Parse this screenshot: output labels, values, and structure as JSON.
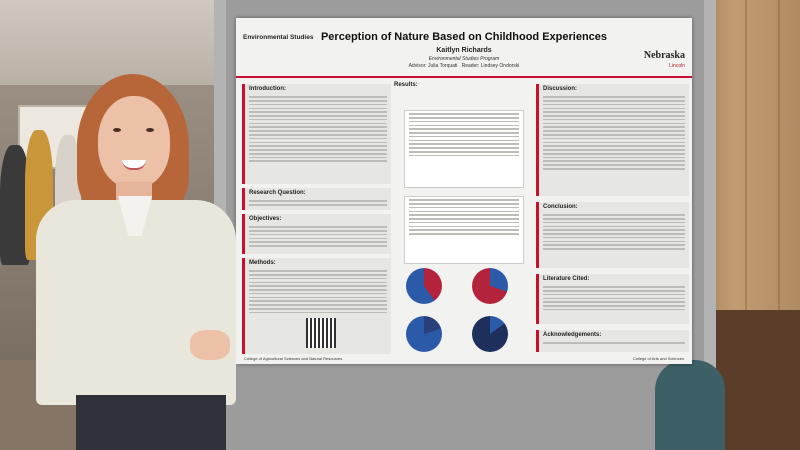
{
  "poster": {
    "logo_small": "Environmental Studies",
    "title": "Perception of Nature Based on Childhood Experiences",
    "author": "Kaitlyn Richards",
    "program": "Environmental Studies Program",
    "advisor": "Advisor: Julia Torquati",
    "reader": "Reader: Lindsey Ondorski",
    "university": "Nebraska",
    "university_sub": "Lincoln",
    "sections": {
      "introduction": "Introduction:",
      "research_question": "Research Question:",
      "objectives": "Objectives:",
      "methods": "Methods:",
      "results": "Results:",
      "discussion": "Discussion:",
      "conclusion": "Conclusion:",
      "literature": "Literature Cited:",
      "acknowledgements": "Acknowledgements:"
    },
    "footer_left": "College of Agricultural Sciences and Natural Resources",
    "footer_right": "College of Arts and Sciences"
  },
  "colors": {
    "accent": "#c8102e",
    "pie_blue": "#2b5aa8",
    "pie_red": "#b3243c"
  }
}
